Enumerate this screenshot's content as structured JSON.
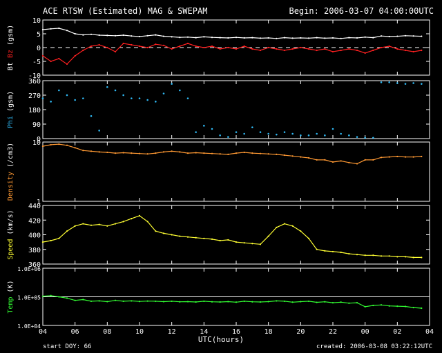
{
  "header": {
    "title": "ACE RTSW (Estimated) MAG & SWEPAM",
    "begin": "Begin: 2006-03-07 04:00:00UTC"
  },
  "footer": {
    "start_doy": "start DOY:  66",
    "created": "created: 2006-03-08 03:22:12UTC"
  },
  "colors": {
    "bt": "#ffffff",
    "bz": "#ff2020",
    "phi": "#2fb6f0",
    "density": "#ff9933",
    "speed": "#ffff33",
    "temp": "#33ff33",
    "frame": "#ffffff"
  },
  "chart_data": [
    {
      "type": "line",
      "panel": "mag",
      "ylabel_parts": [
        {
          "text": "Bt",
          "color": "#ffffff"
        },
        {
          "text": " Bz",
          "color": "#ff2020"
        },
        {
          "text": " (gsm)",
          "color": "#ffffff"
        }
      ],
      "ylim": [
        -10,
        10
      ],
      "yticks": [
        {
          "v": 10,
          "label": "10"
        },
        {
          "v": 5,
          "label": "5"
        },
        {
          "v": 0,
          "label": "0"
        },
        {
          "v": -5,
          "label": "-5"
        },
        {
          "v": -10,
          "label": "-10"
        }
      ],
      "zero_line": true,
      "series": [
        {
          "key": "bt",
          "color": "#ffffff",
          "x": [
            0,
            0.5,
            1,
            1.5,
            2,
            2.5,
            3,
            3.5,
            4,
            4.5,
            5,
            5.5,
            6,
            6.5,
            7,
            7.5,
            8,
            8.5,
            9,
            9.5,
            10,
            10.5,
            11,
            11.5,
            12,
            12.5,
            13,
            13.5,
            14,
            14.5,
            15,
            15.5,
            16,
            16.5,
            17,
            17.5,
            18,
            18.5,
            19,
            19.5,
            20,
            20.5,
            21,
            21.5,
            22,
            22.5,
            23,
            23.5
          ],
          "y": [
            6.5,
            6.8,
            7.0,
            6.2,
            5.0,
            4.6,
            4.8,
            4.5,
            4.4,
            4.3,
            4.5,
            4.2,
            4.0,
            4.3,
            4.6,
            4.1,
            3.9,
            3.7,
            3.8,
            3.6,
            3.9,
            3.7,
            3.6,
            3.5,
            3.7,
            3.5,
            3.6,
            3.4,
            3.5,
            3.3,
            3.6,
            3.4,
            3.5,
            3.4,
            3.6,
            3.4,
            3.5,
            3.3,
            3.6,
            3.5,
            3.8,
            3.6,
            4.2,
            4.0,
            4.1,
            4.3,
            4.2,
            4.1
          ]
        },
        {
          "key": "bz",
          "color": "#ff2020",
          "x": [
            0,
            0.5,
            1,
            1.5,
            2,
            2.5,
            3,
            3.5,
            4,
            4.5,
            5,
            5.5,
            6,
            6.5,
            7,
            7.5,
            8,
            8.5,
            9,
            9.5,
            10,
            10.5,
            11,
            11.5,
            12,
            12.5,
            13,
            13.5,
            14,
            14.5,
            15,
            15.5,
            16,
            16.5,
            17,
            17.5,
            18,
            18.5,
            19,
            19.5,
            20,
            20.5,
            21,
            21.5,
            22,
            22.5,
            23,
            23.5
          ],
          "y": [
            -3,
            -5,
            -4,
            -6,
            -3,
            -1,
            0.5,
            1,
            0,
            -1.5,
            1.5,
            1,
            0.5,
            0,
            1.2,
            0.8,
            -0.5,
            0.5,
            1.5,
            0.5,
            0,
            0.5,
            -0.5,
            0,
            -0.5,
            0.5,
            -0.5,
            -1,
            0,
            -0.5,
            -1,
            -0.5,
            0,
            -0.5,
            -1,
            -0.5,
            -1.5,
            -1,
            -0.5,
            -1,
            -2,
            -1,
            0,
            0.5,
            -0.5,
            -1,
            -1.5,
            -1
          ]
        }
      ]
    },
    {
      "type": "scatter",
      "panel": "phi",
      "ylabel_parts": [
        {
          "text": "Phi",
          "color": "#2fb6f0"
        },
        {
          "text": " (gsm)",
          "color": "#ffffff"
        }
      ],
      "ylim": [
        0,
        360
      ],
      "yticks": [
        {
          "v": 360,
          "label": "360"
        },
        {
          "v": 270,
          "label": "270"
        },
        {
          "v": 180,
          "label": "180"
        },
        {
          "v": 90,
          "label": "90"
        },
        {
          "v": 0,
          "label": "0"
        }
      ],
      "series": [
        {
          "key": "phi",
          "color": "#2fb6f0",
          "x": [
            0,
            0.5,
            1,
            1.5,
            2,
            2.5,
            3,
            3.5,
            4,
            4.5,
            5,
            5.5,
            6,
            6.5,
            7,
            7.5,
            8,
            8.5,
            9,
            9.5,
            10,
            10.5,
            11,
            11.5,
            12,
            12.5,
            13,
            13.5,
            14,
            14.5,
            15,
            15.5,
            16,
            16.5,
            17,
            17.5,
            18,
            18.5,
            19,
            19.5,
            20,
            20.5,
            21,
            21.5,
            22,
            22.5,
            23,
            23.5
          ],
          "y": [
            250,
            230,
            300,
            270,
            240,
            250,
            140,
            50,
            320,
            300,
            270,
            250,
            250,
            240,
            230,
            280,
            340,
            300,
            250,
            40,
            80,
            60,
            20,
            10,
            40,
            30,
            70,
            40,
            30,
            25,
            40,
            30,
            20,
            20,
            30,
            20,
            60,
            30,
            20,
            10,
            5,
            5,
            350,
            350,
            345,
            340,
            345,
            340
          ]
        }
      ]
    },
    {
      "type": "line",
      "panel": "density",
      "ylabel_parts": [
        {
          "text": "Density",
          "color": "#ff9933"
        },
        {
          "text": " (/cm3)",
          "color": "#ffffff"
        }
      ],
      "ylim": [
        1,
        10
      ],
      "log": true,
      "yticks": [
        {
          "v": 10,
          "label": "10"
        },
        {
          "v": 1,
          "label": "1"
        }
      ],
      "series": [
        {
          "key": "density",
          "color": "#ff9933",
          "x": [
            0,
            0.5,
            1,
            1.5,
            2,
            2.5,
            3,
            3.5,
            4,
            4.5,
            5,
            5.5,
            6,
            6.5,
            7,
            7.5,
            8,
            8.5,
            9,
            9.5,
            10,
            10.5,
            11,
            11.5,
            12,
            12.5,
            13,
            13.5,
            14,
            14.5,
            15,
            15.5,
            16,
            16.5,
            17,
            17.5,
            18,
            18.5,
            19,
            19.5,
            20,
            20.5,
            21,
            21.5,
            22,
            22.5,
            23,
            23.5
          ],
          "y": [
            8.5,
            9,
            9.2,
            8.8,
            8,
            7.2,
            7,
            6.8,
            6.7,
            6.5,
            6.6,
            6.5,
            6.4,
            6.3,
            6.5,
            6.8,
            7,
            6.8,
            6.5,
            6.6,
            6.5,
            6.4,
            6.3,
            6.2,
            6.5,
            6.7,
            6.5,
            6.4,
            6.3,
            6.2,
            6,
            5.8,
            5.6,
            5.4,
            5,
            5,
            4.6,
            4.8,
            4.5,
            4.3,
            5,
            5,
            5.5,
            5.6,
            5.7,
            5.6,
            5.6,
            5.7
          ]
        }
      ]
    },
    {
      "type": "line",
      "panel": "speed",
      "ylabel_parts": [
        {
          "text": "Speed",
          "color": "#ffff33"
        },
        {
          "text": " (km/s)",
          "color": "#ffffff"
        }
      ],
      "ylim": [
        360,
        440
      ],
      "yticks": [
        {
          "v": 440,
          "label": "440"
        },
        {
          "v": 420,
          "label": "420"
        },
        {
          "v": 400,
          "label": "400"
        },
        {
          "v": 380,
          "label": "380"
        },
        {
          "v": 360,
          "label": "360"
        }
      ],
      "series": [
        {
          "key": "speed",
          "color": "#ffff33",
          "x": [
            0,
            0.5,
            1,
            1.5,
            2,
            2.5,
            3,
            3.5,
            4,
            4.5,
            5,
            5.5,
            6,
            6.5,
            7,
            7.5,
            8,
            8.5,
            9,
            9.5,
            10,
            10.5,
            11,
            11.5,
            12,
            12.5,
            13,
            13.5,
            14,
            14.5,
            15,
            15.5,
            16,
            16.5,
            17,
            17.5,
            18,
            18.5,
            19,
            19.5,
            20,
            20.5,
            21,
            21.5,
            22,
            22.5,
            23,
            23.5
          ],
          "y": [
            390,
            392,
            395,
            405,
            412,
            415,
            413,
            414,
            412,
            415,
            418,
            422,
            426,
            418,
            405,
            402,
            400,
            398,
            397,
            396,
            395,
            394,
            392,
            393,
            390,
            389,
            388,
            387,
            398,
            410,
            415,
            412,
            405,
            395,
            380,
            378,
            377,
            376,
            374,
            373,
            372,
            372,
            371,
            371,
            370,
            370,
            369,
            369
          ]
        }
      ]
    },
    {
      "type": "line",
      "panel": "temp",
      "ylabel_parts": [
        {
          "text": "Temp",
          "color": "#33ff33"
        },
        {
          "text": " (K)",
          "color": "#ffffff"
        }
      ],
      "ylim": [
        10000,
        1000000
      ],
      "log": true,
      "ref_line": 100000,
      "yticks": [
        {
          "v": 1000000,
          "label": "1.0E+06"
        },
        {
          "v": 100000,
          "label": "1.0E+05"
        },
        {
          "v": 10000,
          "label": "1.0E+04"
        }
      ],
      "series": [
        {
          "key": "temp",
          "color": "#33ff33",
          "x": [
            0,
            0.5,
            1,
            1.5,
            2,
            2.5,
            3,
            3.5,
            4,
            4.5,
            5,
            5.5,
            6,
            6.5,
            7,
            7.5,
            8,
            8.5,
            9,
            9.5,
            10,
            10.5,
            11,
            11.5,
            12,
            12.5,
            13,
            13.5,
            14,
            14.5,
            15,
            15.5,
            16,
            16.5,
            17,
            17.5,
            18,
            18.5,
            19,
            19.5,
            20,
            20.5,
            21,
            21.5,
            22,
            22.5,
            23,
            23.5
          ],
          "y": [
            105000,
            110000,
            100000,
            90000,
            75000,
            80000,
            70000,
            72000,
            68000,
            75000,
            70000,
            72000,
            69000,
            71000,
            70000,
            68000,
            70000,
            67000,
            68000,
            66000,
            70000,
            67000,
            66000,
            68000,
            65000,
            70000,
            67000,
            66000,
            68000,
            72000,
            70000,
            65000,
            68000,
            70000,
            64000,
            67000,
            62000,
            65000,
            60000,
            62000,
            45000,
            50000,
            52000,
            48000,
            47000,
            46000,
            42000,
            40000
          ]
        }
      ]
    }
  ],
  "xaxis": {
    "xlabel": "UTC(hours)",
    "ticks": [
      {
        "v": 0,
        "label": "04"
      },
      {
        "v": 2,
        "label": "06"
      },
      {
        "v": 4,
        "label": "08"
      },
      {
        "v": 6,
        "label": "10"
      },
      {
        "v": 8,
        "label": "12"
      },
      {
        "v": 10,
        "label": "14"
      },
      {
        "v": 12,
        "label": "16"
      },
      {
        "v": 14,
        "label": "18"
      },
      {
        "v": 16,
        "label": "20"
      },
      {
        "v": 18,
        "label": "22"
      },
      {
        "v": 20,
        "label": "00"
      },
      {
        "v": 22,
        "label": "02"
      },
      {
        "v": 24,
        "label": "04"
      }
    ]
  }
}
